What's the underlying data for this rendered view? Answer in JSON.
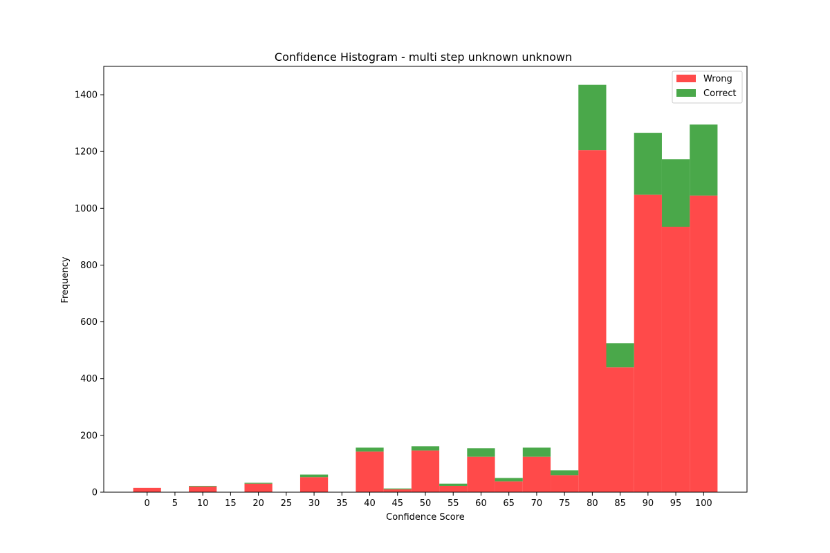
{
  "chart_data": {
    "type": "bar",
    "stacked": true,
    "title": "Confidence Histogram - multi step unknown unknown",
    "xlabel": "Confidence Score",
    "ylabel": "Frequency",
    "x_tick_labels": [
      "0",
      "5",
      "10",
      "15",
      "20",
      "25",
      "30",
      "35",
      "40",
      "45",
      "50",
      "55",
      "60",
      "65",
      "70",
      "75",
      "80",
      "85",
      "90",
      "95",
      "100"
    ],
    "y_tick_labels": [
      "0",
      "200",
      "400",
      "600",
      "800",
      "1000",
      "1200",
      "1400"
    ],
    "ylim": [
      0,
      1500
    ],
    "grid": false,
    "legend_position": "top-right",
    "categories": [
      0,
      5,
      10,
      15,
      20,
      25,
      30,
      35,
      40,
      45,
      50,
      55,
      60,
      65,
      70,
      75,
      80,
      85,
      90,
      95,
      100
    ],
    "series": [
      {
        "name": "Wrong",
        "color": "#ff4a4a",
        "values": [
          15,
          0,
          20,
          0,
          30,
          0,
          53,
          0,
          143,
          10,
          147,
          22,
          125,
          38,
          125,
          60,
          1205,
          440,
          1048,
          935,
          1045
        ]
      },
      {
        "name": "Correct",
        "color": "#4aa84a",
        "values": [
          0,
          0,
          2,
          0,
          3,
          0,
          9,
          0,
          14,
          3,
          15,
          8,
          30,
          12,
          32,
          17,
          230,
          85,
          218,
          238,
          250
        ]
      }
    ]
  }
}
